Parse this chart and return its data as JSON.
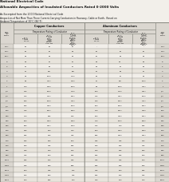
{
  "title1": "National Electrical Code",
  "title2": "Allowable Ampacities of Insulated Conductors Rated 0-2000 Volts",
  "subtitle": "As Excerpted from the 2000 National Electrical Code",
  "note1": "Ampacities of Not More Than Three Current-Carrying Conductors in Raceway, Cable or Earth,  Based on",
  "note2": "Ambient Temperature of 30°C (86°F)",
  "rows": [
    [
      "14**",
      "20",
      "20",
      "25",
      "–",
      "–",
      "–",
      "14**"
    ],
    [
      "12**",
      "25",
      "25",
      "30",
      "20",
      "20",
      "25",
      "12**"
    ],
    [
      "10**",
      "30",
      "35",
      "40",
      "25",
      "30",
      "35",
      "10**"
    ],
    [
      "8",
      "40",
      "50",
      "55",
      "30",
      "40",
      "45",
      "8"
    ],
    [
      "6",
      "55",
      "65",
      "75",
      "40",
      "55",
      "60",
      "6"
    ],
    [
      "4",
      "70",
      "85*",
      "95*",
      "55",
      "65",
      "75",
      "4"
    ],
    [
      "3",
      "85",
      "100*",
      "110*",
      "65",
      "75",
      "85",
      "3"
    ],
    [
      "2",
      "95",
      "115*",
      "130*",
      "75",
      "90*",
      "100*",
      "2"
    ],
    [
      "1",
      "110",
      "130*",
      "150*",
      "85",
      "100*",
      "115*",
      "1"
    ],
    [
      "1/0",
      "125",
      "150*",
      "170*",
      "100",
      "120*",
      "135*",
      "1/0"
    ],
    [
      "2/0",
      "145",
      "175*",
      "195*",
      "115",
      "135*",
      "150*",
      "2/0"
    ],
    [
      "3/0",
      "165",
      "200*",
      "225*",
      "130",
      "155*",
      "175*",
      "3/0"
    ],
    [
      "4/0",
      "195",
      "230*",
      "260*",
      "150",
      "180*",
      "205*",
      "4/0"
    ],
    [
      "250",
      "215",
      "255*",
      "290*",
      "170",
      "205*",
      "230*",
      "250"
    ],
    [
      "300",
      "240",
      "285",
      "320",
      "190",
      "230*",
      "255*",
      "300"
    ],
    [
      "350",
      "260",
      "310*",
      "350*",
      "210",
      "250*",
      "280*",
      "350"
    ],
    [
      "400",
      "280",
      "335*",
      "380*",
      "225",
      "270",
      "305",
      "400"
    ],
    [
      "500",
      "320",
      "380",
      "430",
      "260",
      "310*",
      "350*",
      "500"
    ],
    [
      "600",
      "355",
      "420",
      "475",
      "285",
      "340*",
      "385*",
      "600"
    ],
    [
      "700",
      "385",
      "460",
      "520",
      "315",
      "375",
      "420",
      "700"
    ],
    [
      "750",
      "400",
      "475",
      "535",
      "320",
      "385",
      "435",
      "750"
    ],
    [
      "800",
      "410",
      "490",
      "555",
      "330",
      "395",
      "450",
      "800"
    ],
    [
      "900",
      "435",
      "520",
      "585",
      "355",
      "425",
      "480",
      "900"
    ],
    [
      "1000",
      "455",
      "545",
      "615",
      "375",
      "445",
      "500",
      "1000"
    ],
    [
      "1250",
      "495",
      "590",
      "665",
      "405",
      "485",
      "545",
      "1250"
    ],
    [
      "1500",
      "520",
      "625",
      "705",
      "435",
      "520",
      "585",
      "1500"
    ],
    [
      "1750",
      "545",
      "650",
      "735",
      "455",
      "545",
      "615",
      "1750"
    ],
    [
      "2000",
      "560",
      "665",
      "750",
      "470",
      "560",
      "630",
      "2000"
    ]
  ],
  "bg_color": "#f2efea",
  "header_bg": "#dbd7d0",
  "row_even": "#f2efea",
  "row_odd": "#e8e4dc",
  "border_color": "#888880",
  "text_color": "#111111"
}
